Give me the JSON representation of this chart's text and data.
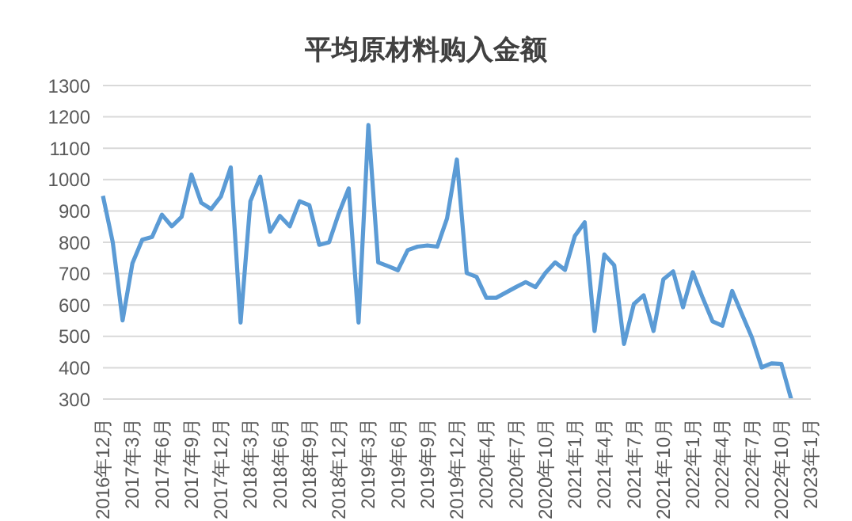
{
  "chart_data": {
    "type": "line",
    "title": "平均原材料购入金额",
    "categories": [
      "2016年12月",
      null,
      null,
      "2017年3月",
      null,
      null,
      "2017年6月",
      null,
      null,
      "2017年9月",
      null,
      null,
      "2017年12月",
      null,
      null,
      "2018年3月",
      null,
      null,
      "2018年6月",
      null,
      null,
      "2018年9月",
      null,
      null,
      "2018年12月",
      null,
      null,
      "2019年3月",
      null,
      null,
      "2019年6月",
      null,
      null,
      "2019年9月",
      null,
      null,
      "2019年12月",
      null,
      null,
      "2020年4月",
      null,
      null,
      "2020年7月",
      null,
      null,
      "2020年10月",
      null,
      null,
      "2021年1月",
      null,
      null,
      "2021年4月",
      null,
      null,
      "2021年7月",
      null,
      null,
      "2021年10月",
      null,
      null,
      "2022年1月",
      null,
      null,
      "2022年4月",
      null,
      null,
      "2022年7月",
      null,
      null,
      "2022年10月",
      null,
      null,
      "2023年1月"
    ],
    "series": [
      {
        "color": "#5b9bd5",
        "values": [
          948,
          800,
          551,
          733,
          808,
          817,
          888,
          851,
          881,
          1016,
          926,
          906,
          946,
          1039,
          544,
          931,
          1009,
          834,
          884,
          851,
          931,
          918,
          792,
          800,
          893,
          972,
          544,
          1174,
          736,
          724,
          711,
          775,
          786,
          790,
          786,
          876,
          1064,
          702,
          690,
          623,
          623,
          640,
          657,
          673,
          657,
          702,
          736,
          712,
          820,
          864,
          517,
          761,
          727,
          476,
          603,
          631,
          517,
          682,
          707,
          593,
          704,
          623,
          548,
          534,
          645,
          570,
          497,
          401,
          414,
          412,
          300,
          null,
          null
        ]
      }
    ],
    "ylim": [
      300,
      1300
    ],
    "yticks": [
      300,
      400,
      500,
      600,
      700,
      800,
      900,
      1000,
      1100,
      1200,
      1300
    ],
    "grid": "y",
    "legend": false,
    "marker": "none",
    "line_style": "solid"
  }
}
